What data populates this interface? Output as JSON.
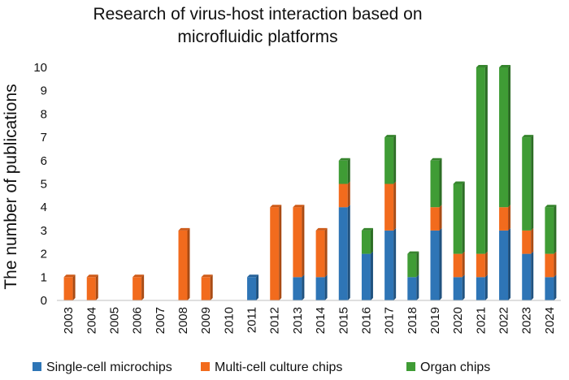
{
  "chart_data": {
    "type": "bar",
    "stacked": true,
    "title_lines": [
      "Research of virus-host interaction based on",
      "microfluidic platforms"
    ],
    "xlabel": "",
    "ylabel": "The number of publications",
    "ylim": [
      0,
      10
    ],
    "yticks": [
      0,
      1,
      2,
      3,
      4,
      5,
      6,
      7,
      8,
      9,
      10
    ],
    "grid": false,
    "legend_position": "bottom",
    "categories": [
      "2003",
      "2004",
      "2005",
      "2006",
      "2007",
      "2008",
      "2009",
      "2010",
      "2011",
      "2012",
      "2013",
      "2014",
      "2015",
      "2016",
      "2017",
      "2018",
      "2019",
      "2020",
      "2021",
      "2022",
      "2023",
      "2024"
    ],
    "series": [
      {
        "name": "Single-cell microchips",
        "color": "#2e75b6",
        "values": [
          0,
          0,
          0,
          0,
          0,
          0,
          0,
          0,
          1,
          0,
          1,
          1,
          4,
          2,
          3,
          1,
          3,
          1,
          1,
          3,
          2,
          1
        ]
      },
      {
        "name": "Multi-cell culture chips",
        "color": "#f26b1d",
        "values": [
          1,
          1,
          0,
          1,
          0,
          3,
          1,
          0,
          0,
          4,
          3,
          2,
          1,
          0,
          2,
          0,
          1,
          1,
          1,
          1,
          1,
          1
        ]
      },
      {
        "name": "Organ chips",
        "color": "#3f9c35",
        "values": [
          0,
          0,
          0,
          0,
          0,
          0,
          0,
          0,
          0,
          0,
          0,
          0,
          1,
          1,
          2,
          1,
          2,
          3,
          8,
          6,
          4,
          2
        ]
      }
    ]
  }
}
